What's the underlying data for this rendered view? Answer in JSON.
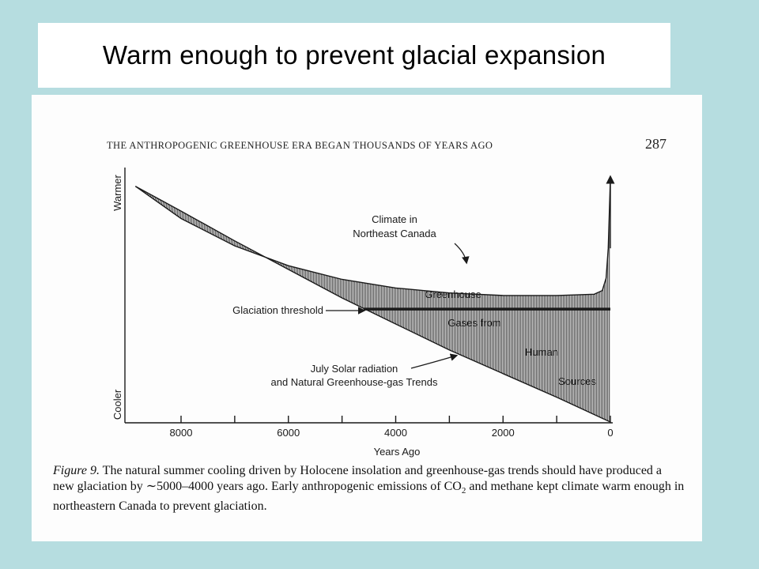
{
  "slide": {
    "title": "Warm enough to prevent glacial expansion"
  },
  "page": {
    "running_head": "THE ANTHROPOGENIC GREENHOUSE ERA BEGAN THOUSANDS OF YEARS AGO",
    "page_number": "287"
  },
  "caption": {
    "figure_label": "Figure 9.",
    "text_1": "The natural summer cooling driven by Holocene insolation and greenhouse-gas trends should have produced a new glaciation by ∼5000–4000 years ago. Early anthropogenic emissions of CO",
    "subscript": "2",
    "text_2": " and methane kept climate warm enough in northeastern Canada to prevent glaciation."
  },
  "colors": {
    "slide_background": "#b6dde0",
    "shading": "#7a7a7a",
    "line": "#1a1a1a"
  },
  "chart_data": {
    "type": "line",
    "title": "",
    "xlabel": "Years Ago",
    "ylabel_top": "Warmer",
    "ylabel_bottom": "Cooler",
    "x_reversed": true,
    "xlim": [
      9000,
      0
    ],
    "ylim": [
      0,
      100
    ],
    "x_ticks": [
      8000,
      7000,
      6000,
      5000,
      4000,
      3000,
      2000,
      1000,
      0
    ],
    "x_tick_labels": [
      "8000",
      "6000",
      "4000",
      "2000",
      "0"
    ],
    "x_labeled_ticks": [
      8000,
      6000,
      4000,
      2000,
      0
    ],
    "grid": false,
    "series": [
      {
        "name": "Climate in Northeast Canada",
        "x": [
          8850,
          8000,
          7000,
          6000,
          5000,
          4000,
          3000,
          2000,
          1000,
          300,
          150,
          80,
          40,
          0
        ],
        "y": [
          95,
          82,
          71,
          63,
          57.5,
          54,
          52,
          51,
          51,
          51.5,
          53,
          58,
          70,
          98
        ]
      },
      {
        "name": "July Solar radiation and Natural Greenhouse-gas Trends",
        "x": [
          8850,
          8000,
          7000,
          6000,
          5000,
          4000,
          3000,
          2000,
          1000,
          0
        ],
        "y": [
          95,
          85,
          73,
          61.5,
          50,
          39.5,
          29,
          19.5,
          10,
          0
        ]
      },
      {
        "name": "Glaciation threshold",
        "x": [
          4600,
          0
        ],
        "y": [
          45.5,
          45.5
        ]
      }
    ],
    "shaded_region_label": [
      "Greenhouse",
      "Gases from",
      "Human",
      "Sources"
    ],
    "annotations": [
      {
        "text": [
          "Climate in",
          "Northeast Canada"
        ]
      },
      {
        "text": [
          "Glaciation threshold"
        ]
      },
      {
        "text": [
          "July Solar radiation",
          "and Natural Greenhouse-gas Trends"
        ]
      }
    ]
  }
}
